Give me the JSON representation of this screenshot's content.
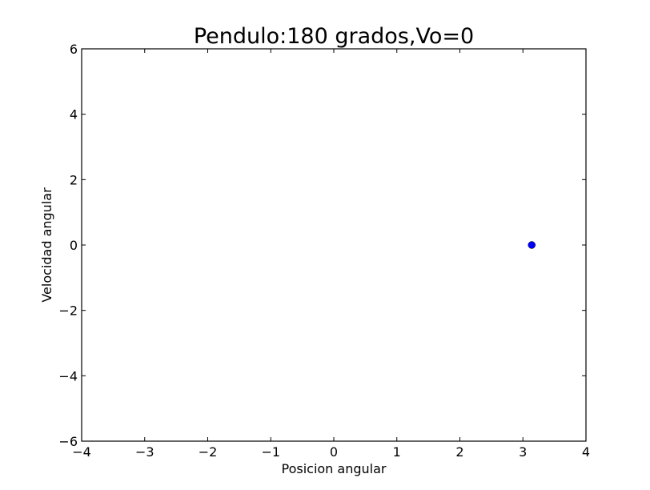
{
  "chart_data": {
    "type": "scatter",
    "title": "Pendulo:180 grados,Vo=0",
    "xlabel": "Posicion angular",
    "ylabel": "Velocidad angular",
    "xlim": [
      -4,
      4
    ],
    "ylim": [
      -6,
      6
    ],
    "xticks": [
      -4,
      -3,
      -2,
      -1,
      0,
      1,
      2,
      3,
      4
    ],
    "yticks": [
      -6,
      -4,
      -2,
      0,
      2,
      4,
      6
    ],
    "xtick_labels": [
      "−4",
      "−3",
      "−2",
      "−1",
      "0",
      "1",
      "2",
      "3",
      "4"
    ],
    "ytick_labels": [
      "−6",
      "−4",
      "−2",
      "0",
      "2",
      "4",
      "6"
    ],
    "grid": false,
    "series": [
      {
        "color": "#0000ff",
        "marker": "circle",
        "points": [
          {
            "x": 3.14,
            "y": 0
          }
        ]
      }
    ]
  }
}
